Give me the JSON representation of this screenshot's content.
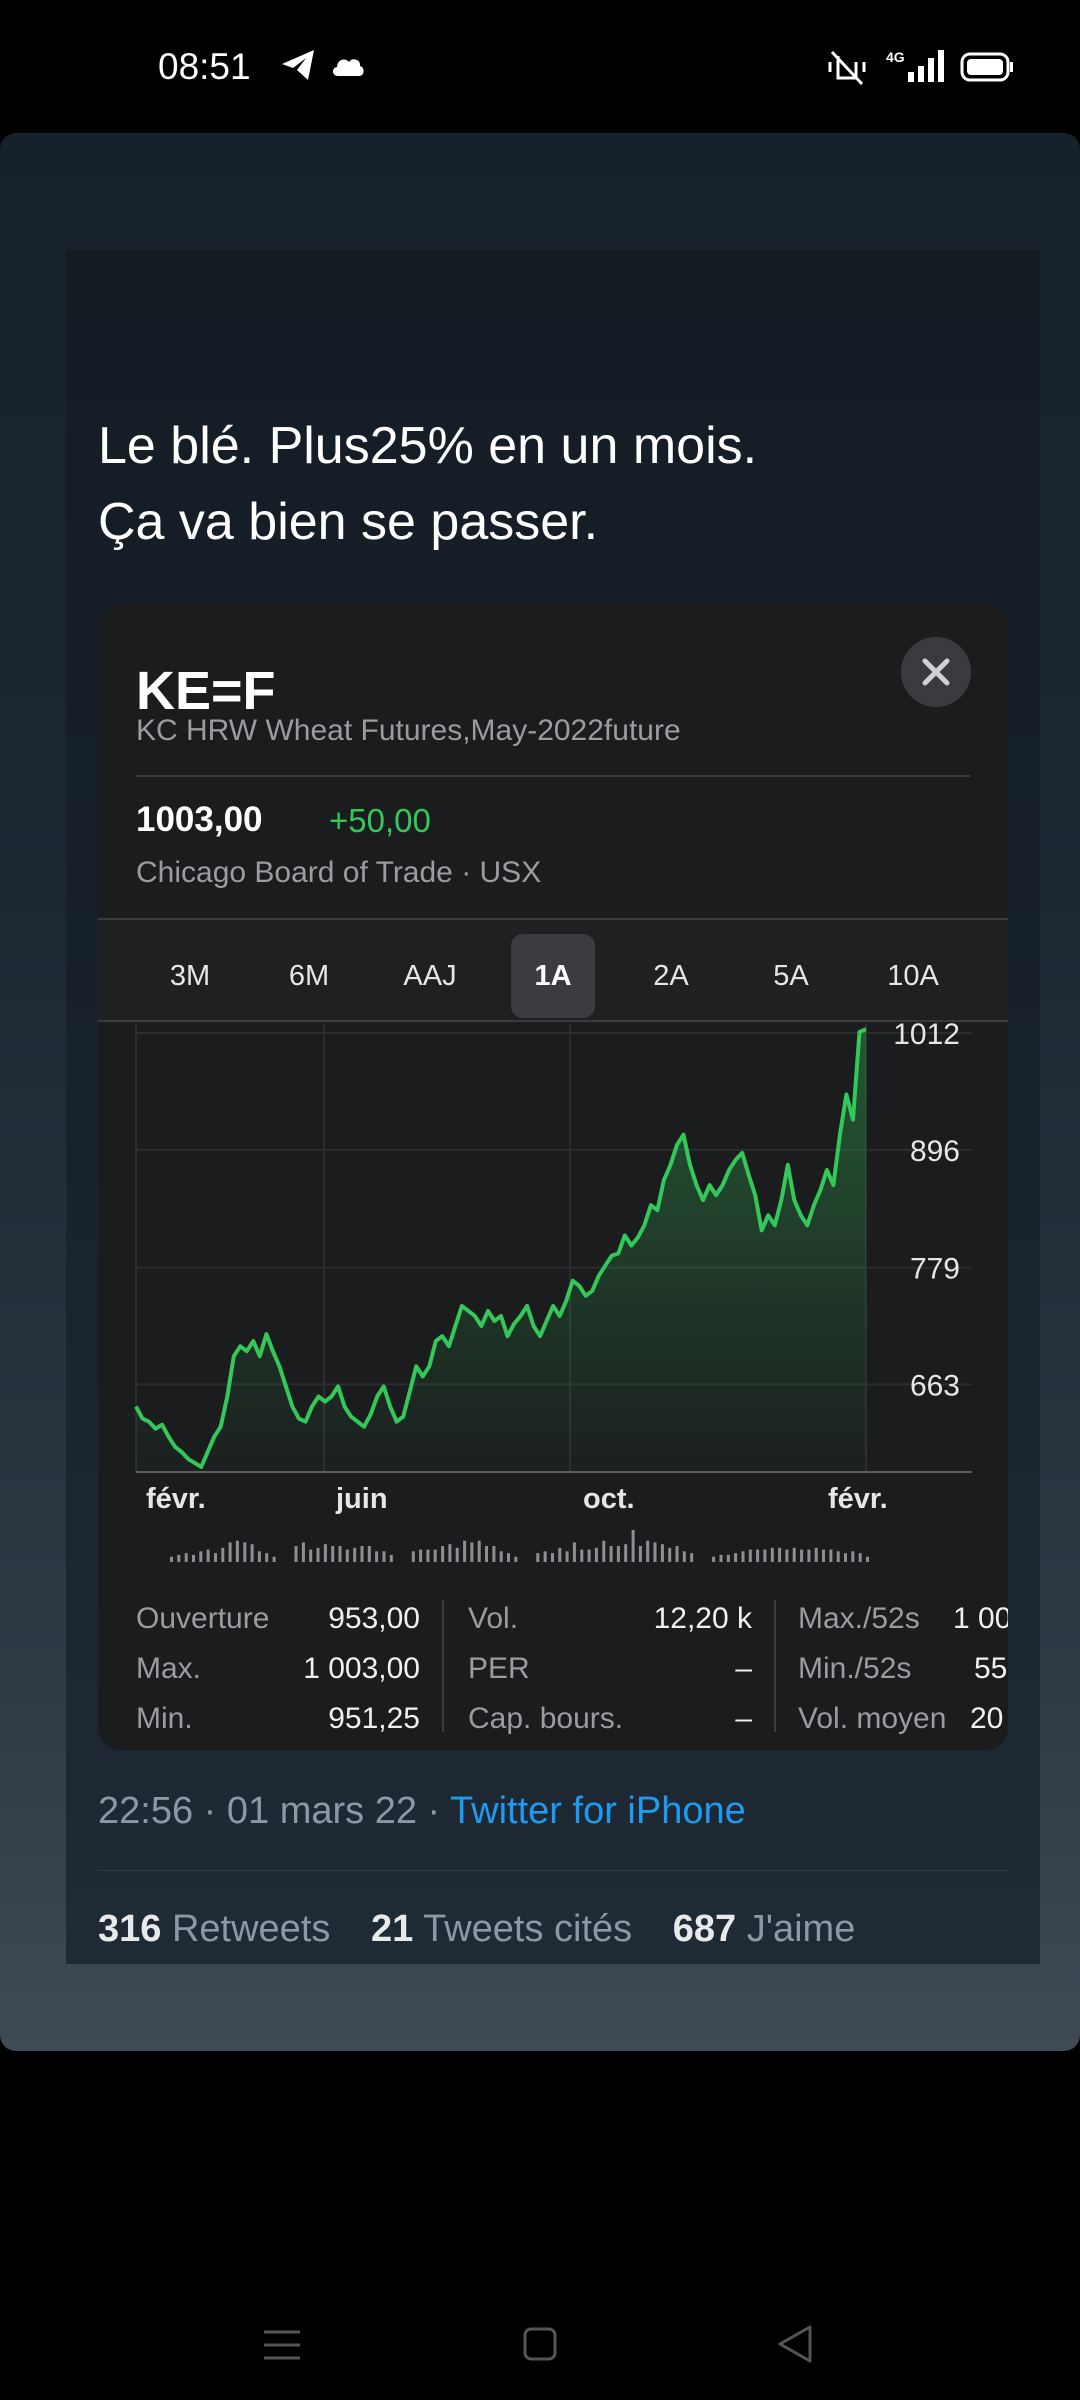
{
  "status_bar": {
    "time": "08:51",
    "icons_left": [
      "telegram-icon",
      "cloud-icon"
    ],
    "icons_right": [
      "mute-vibrate-icon",
      "signal-4g-icon",
      "battery-icon"
    ],
    "network": "4G"
  },
  "tweet": {
    "text_line1": "Le blé. Plus25% en un mois.",
    "text_line2": "Ça va bien se passer.",
    "meta_time": "22:56 · 01 mars 22 · ",
    "meta_source": "Twitter for iPhone",
    "retweets_count": "316",
    "retweets_label": "Retweets",
    "quotes_count": "21",
    "quotes_label": "Tweets cités",
    "likes_count": "687",
    "likes_label": "J'aime"
  },
  "stock_card": {
    "symbol": "KE=F",
    "name": "KC HRW Wheat Futures,May-2022future",
    "price": "1003,00",
    "change": "+50,00",
    "exchange": "Chicago Board of Trade · USX",
    "close_icon": "close-icon",
    "ranges": [
      "3M",
      "6M",
      "AAJ",
      "1A",
      "2A",
      "5A",
      "10A"
    ],
    "active_range": "1A",
    "stats": {
      "col1": [
        {
          "label": "Ouverture",
          "value": "953,00"
        },
        {
          "label": "Max.",
          "value": "1 003,00"
        },
        {
          "label": "Min.",
          "value": "951,25"
        }
      ],
      "col2": [
        {
          "label": "Vol.",
          "value": "12,20 k"
        },
        {
          "label": "PER",
          "value": "–"
        },
        {
          "label": "Cap. bours.",
          "value": "–"
        }
      ],
      "col3": [
        {
          "label": "Max./52s",
          "value": "1 00"
        },
        {
          "label": "Min./52s",
          "value": "55"
        },
        {
          "label": "Vol. moyen",
          "value": "20"
        }
      ]
    }
  },
  "chart_data": {
    "type": "area",
    "xlabel": "",
    "ylabel": "",
    "x_tick_labels": [
      "févr.",
      "juin",
      "oct.",
      "févr."
    ],
    "y_tick_labels": [
      "1012",
      "896",
      "779",
      "663"
    ],
    "y_ticks": [
      1012,
      896,
      779,
      663
    ],
    "ylim": [
      575,
      1020
    ],
    "grid": true,
    "series": [
      {
        "values": [
          640,
          628,
          625,
          618,
          622,
          610,
          600,
          595,
          588,
          584,
          580,
          595,
          610,
          620,
          650,
          690,
          700,
          695,
          705,
          690,
          712,
          695,
          680,
          660,
          640,
          628,
          625,
          640,
          650,
          645,
          650,
          660,
          640,
          630,
          625,
          620,
          632,
          650,
          660,
          640,
          625,
          630,
          655,
          680,
          670,
          680,
          705,
          710,
          700,
          720,
          740,
          735,
          730,
          720,
          735,
          725,
          730,
          710,
          722,
          730,
          740,
          720,
          710,
          725,
          740,
          730,
          745,
          765,
          760,
          750,
          755,
          770,
          780,
          790,
          792,
          810,
          800,
          808,
          820,
          840,
          835,
          865,
          880,
          900,
          910,
          880,
          860,
          845,
          860,
          850,
          860,
          875,
          885,
          892,
          870,
          850,
          815,
          830,
          820,
          845,
          880,
          845,
          830,
          820,
          840,
          855,
          875,
          860,
          910,
          950,
          925,
          1012,
          1015
        ]
      }
    ],
    "volume": [
      3,
      4,
      5,
      4,
      6,
      7,
      5,
      8,
      11,
      12,
      11,
      10,
      6,
      5,
      3,
      0,
      0,
      9,
      11,
      7,
      8,
      10,
      9,
      9,
      7,
      8,
      9,
      9,
      6,
      6,
      4,
      0,
      0,
      6,
      7,
      7,
      7,
      9,
      10,
      8,
      12,
      11,
      12,
      9,
      9,
      6,
      5,
      3,
      0,
      0,
      5,
      6,
      5,
      8,
      6,
      11,
      7,
      7,
      8,
      12,
      9,
      9,
      10,
      18,
      9,
      12,
      11,
      10,
      8,
      9,
      6,
      5,
      0,
      0,
      3,
      4,
      4,
      5,
      6,
      7,
      7,
      7,
      8,
      8,
      7,
      8,
      7,
      7,
      8,
      7,
      7,
      6,
      5,
      6,
      5,
      3
    ]
  },
  "colors": {
    "up_green": "#34c759",
    "link_blue": "#1d9bf0",
    "card_bg": "#1b1c1e"
  },
  "nav_bar": {
    "icons": [
      "menu-icon",
      "home-square-icon",
      "back-triangle-icon"
    ]
  }
}
